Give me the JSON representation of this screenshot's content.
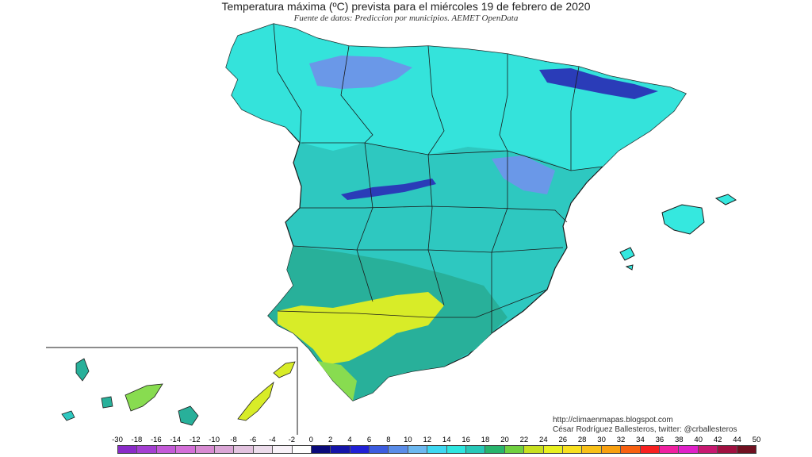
{
  "header": {
    "title": "Temperatura máxima (ºC) prevista para el miércoles 19 de febrero de 2020",
    "subtitle": "Fuente de datos: Prediccion por municipios. AEMET OpenData"
  },
  "credits": {
    "blog": "http://climaenmapas.blogspot.com",
    "author": "César Rodríguez Ballesteros, twitter: @crballesteros"
  },
  "legend": {
    "labels": [
      "-30",
      "-18",
      "-16",
      "-14",
      "-12",
      "-10",
      "-8",
      "-6",
      "-4",
      "-2",
      "0",
      "2",
      "4",
      "6",
      "8",
      "10",
      "12",
      "14",
      "16",
      "18",
      "20",
      "22",
      "24",
      "26",
      "28",
      "30",
      "32",
      "34",
      "36",
      "38",
      "40",
      "42",
      "44",
      "50"
    ],
    "colors": [
      "#8a2bc8",
      "#a43fd2",
      "#c45ad8",
      "#d46fd8",
      "#d88bd2",
      "#dba6d6",
      "#e3c3df",
      "#ecdceb",
      "#f8f2f8",
      "#ffffff",
      "#0a0a7a",
      "#1414a8",
      "#2020d6",
      "#3c5ce0",
      "#5a8ce8",
      "#6cb8f0",
      "#3ed8f2",
      "#2ee6e0",
      "#28c8b8",
      "#28b46c",
      "#70d040",
      "#c8e020",
      "#e8f020",
      "#f8e020",
      "#f8c018",
      "#f8a010",
      "#f86010",
      "#f82020",
      "#f020a0",
      "#e020c8",
      "#c81870",
      "#a01040",
      "#701020"
    ]
  },
  "map": {
    "region": "Spain",
    "palette": {
      "base": "#2ec8c0",
      "north": "#35e8df",
      "cool": "#6a98e8",
      "cold": "#2a3cb8",
      "warm": "#28b09a",
      "hot": "#d8ec28",
      "green": "#88dc50",
      "border": "#1a1a1a"
    }
  }
}
